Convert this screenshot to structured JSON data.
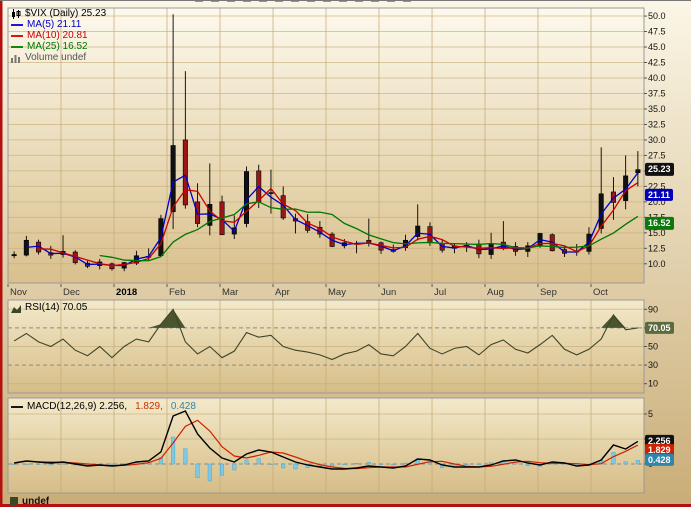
{
  "chart_data": [
    {
      "type": "candlestick",
      "symbol": "$VIX",
      "timeframe": "Daily",
      "last_price": 25.23,
      "title": "$VIX (Daily) 25.23",
      "legend": [
        {
          "swatch": "candle",
          "color": "#000000",
          "text": "$VIX (Daily) 25.23"
        },
        {
          "swatch": "line",
          "color": "#0000cc",
          "text": "MA(5) 21.11"
        },
        {
          "swatch": "line",
          "color": "#cc0000",
          "text": "MA(10) 20.81"
        },
        {
          "swatch": "line",
          "color": "#007700",
          "text": "MA(25) 16.52"
        },
        {
          "swatch": "bars",
          "color": "#666666",
          "text": "Volume undef"
        }
      ],
      "x_axis": {
        "unit": "weeks",
        "months": [
          {
            "label": "Nov",
            "pos": 0
          },
          {
            "label": "Dec",
            "pos": 4.33
          },
          {
            "label": "2018",
            "pos": 8.67,
            "bold": true
          },
          {
            "label": "Feb",
            "pos": 13
          },
          {
            "label": "Mar",
            "pos": 17.33
          },
          {
            "label": "Apr",
            "pos": 21.67
          },
          {
            "label": "May",
            "pos": 26
          },
          {
            "label": "Jun",
            "pos": 30.33
          },
          {
            "label": "Jul",
            "pos": 34.67
          },
          {
            "label": "Aug",
            "pos": 39
          },
          {
            "label": "Sep",
            "pos": 43.33
          },
          {
            "label": "Oct",
            "pos": 47.67
          }
        ]
      },
      "ylim": [
        6.9,
        51.3
      ],
      "ytick_values": [
        50,
        47.5,
        45,
        42.5,
        40,
        37.5,
        35,
        32.5,
        30,
        27.5,
        25,
        22.5,
        20,
        17.5,
        15,
        12.5,
        10
      ],
      "ytick_labels": [
        "50.0",
        "47.5",
        "45.0",
        "42.5",
        "40.0",
        "37.5",
        "35.0",
        "32.5",
        "30.0",
        "27.5",
        "25.0",
        "22.5",
        "20.0",
        "17.5",
        "15.0",
        "12.5",
        "10.0"
      ],
      "ohlc": [
        [
          11.3,
          12.0,
          10.9,
          11.5
        ],
        [
          11.4,
          14.5,
          11.2,
          13.8
        ],
        [
          13.5,
          13.9,
          11.5,
          11.9
        ],
        [
          11.8,
          12.9,
          10.8,
          11.4
        ],
        [
          11.5,
          14.6,
          11.0,
          12.0
        ],
        [
          11.9,
          12.2,
          9.9,
          10.2
        ],
        [
          10.1,
          10.5,
          9.3,
          9.6
        ],
        [
          9.7,
          10.8,
          9.1,
          10.3
        ],
        [
          10.0,
          10.2,
          8.9,
          9.2
        ],
        [
          9.3,
          10.3,
          8.8,
          10.2
        ],
        [
          10.1,
          12.1,
          9.8,
          11.3
        ],
        [
          11.2,
          12.5,
          10.6,
          11.1
        ],
        [
          11.3,
          17.9,
          11.1,
          17.3
        ],
        [
          18.4,
          50.3,
          15.6,
          29.1
        ],
        [
          30.0,
          41.1,
          18.9,
          19.5
        ],
        [
          20.0,
          23.0,
          15.9,
          16.5
        ],
        [
          16.2,
          26.2,
          14.6,
          19.6
        ],
        [
          20.0,
          21.0,
          14.6,
          14.7
        ],
        [
          14.8,
          17.8,
          14.0,
          15.8
        ],
        [
          16.5,
          25.7,
          15.9,
          24.9
        ],
        [
          25.0,
          26.0,
          19.0,
          20.0
        ],
        [
          21.5,
          25.2,
          18.1,
          21.5
        ],
        [
          21.0,
          22.5,
          17.1,
          17.4
        ],
        [
          17.3,
          18.1,
          14.9,
          16.9
        ],
        [
          16.8,
          18.0,
          15.0,
          15.4
        ],
        [
          15.9,
          16.9,
          14.2,
          14.8
        ],
        [
          14.8,
          15.1,
          12.7,
          12.8
        ],
        [
          12.9,
          14.0,
          12.5,
          13.4
        ],
        [
          13.3,
          13.7,
          11.7,
          13.2
        ],
        [
          13.8,
          17.3,
          12.8,
          13.5
        ],
        [
          13.4,
          13.6,
          11.6,
          12.2
        ],
        [
          12.3,
          13.1,
          11.8,
          12.0
        ],
        [
          12.6,
          14.7,
          12.1,
          13.8
        ],
        [
          14.4,
          19.6,
          13.8,
          16.1
        ],
        [
          16.0,
          16.7,
          12.9,
          13.4
        ],
        [
          13.3,
          13.8,
          11.8,
          12.2
        ],
        [
          12.5,
          13.2,
          11.7,
          12.9
        ],
        [
          13.0,
          13.5,
          11.9,
          13.0
        ],
        [
          13.2,
          13.9,
          10.9,
          11.6
        ],
        [
          11.5,
          15.0,
          10.8,
          13.2
        ],
        [
          13.5,
          16.9,
          12.2,
          12.6
        ],
        [
          12.8,
          13.5,
          11.3,
          12.0
        ],
        [
          12.0,
          13.5,
          11.1,
          12.9
        ],
        [
          13.0,
          15.0,
          12.6,
          14.9
        ],
        [
          14.7,
          14.9,
          12.0,
          12.1
        ],
        [
          12.3,
          13.0,
          11.1,
          11.7
        ],
        [
          11.9,
          13.2,
          11.3,
          12.1
        ],
        [
          12.0,
          15.9,
          11.5,
          14.8
        ],
        [
          15.7,
          28.8,
          14.9,
          21.3
        ],
        [
          21.6,
          24.0,
          17.1,
          19.9
        ],
        [
          20.2,
          27.5,
          18.8,
          24.2
        ],
        [
          24.7,
          28.2,
          22.5,
          25.2
        ]
      ],
      "overlays": [
        {
          "name": "MA(5)",
          "value": 21.11,
          "color": "#0000cc",
          "smooth": 2
        },
        {
          "name": "MA(10)",
          "value": 20.81,
          "color": "#cc0000",
          "smooth": 3
        },
        {
          "name": "MA(25)",
          "value": 16.52,
          "color": "#007700",
          "smooth": 8
        }
      ],
      "volume": "undef",
      "badges": [
        {
          "label": "25.23",
          "value": 25.23,
          "bg": "#111111"
        },
        {
          "label": "21.11",
          "value": 21.11,
          "bg": "#0000bb"
        },
        {
          "label": "16.52",
          "value": 16.52,
          "bg": "#0b7a0b"
        }
      ]
    },
    {
      "type": "line",
      "name": "RSI(14)",
      "legend_text": "RSI(14) 70.05",
      "value": 70.05,
      "ylim": [
        0,
        100
      ],
      "ytick_values": [
        90,
        70,
        50,
        30,
        10
      ],
      "ytick_labels": [
        "90",
        "70",
        "50",
        "30",
        "10"
      ],
      "grid_solid": [
        90,
        50,
        10
      ],
      "dashed_levels": [
        70,
        30
      ],
      "fill_above": 70,
      "color": "#3d4529",
      "fill_color": "#4a5530",
      "values": [
        56,
        64,
        55,
        50,
        58,
        46,
        40,
        50,
        38,
        50,
        58,
        55,
        74,
        90,
        55,
        42,
        50,
        38,
        45,
        65,
        60,
        62,
        50,
        46,
        44,
        41,
        36,
        42,
        45,
        52,
        42,
        40,
        50,
        64,
        48,
        42,
        48,
        50,
        41,
        52,
        57,
        47,
        43,
        52,
        62,
        47,
        41,
        47,
        58,
        84,
        68,
        70
      ],
      "badge": {
        "label": "70.05",
        "value": 70.05,
        "bg": "#5c6b3f"
      }
    },
    {
      "type": "macd",
      "name": "MACD(12,26,9)",
      "legend_parts": [
        {
          "text": "MACD(12,26,9) 2.256,",
          "color": "#000000"
        },
        {
          "text": "1.829,",
          "color": "#cc3300"
        },
        {
          "text": "0.428",
          "color": "#2e86ab"
        }
      ],
      "ylim": [
        -2.9,
        6.6
      ],
      "ytick_values": [
        5,
        2.5,
        0
      ],
      "ytick_labels": [
        "5",
        "2.5",
        "0"
      ],
      "grid_solid": [
        5,
        2.5
      ],
      "dashed_levels": [
        0
      ],
      "macd": [
        0.1,
        0.3,
        0.2,
        0.1,
        0.2,
        0.0,
        -0.2,
        -0.1,
        -0.2,
        -0.1,
        0.2,
        0.3,
        1.2,
        4.8,
        5.3,
        3.0,
        1.6,
        0.6,
        0.2,
        1.0,
        1.4,
        1.2,
        0.7,
        0.2,
        -0.1,
        -0.3,
        -0.5,
        -0.5,
        -0.4,
        -0.2,
        -0.3,
        -0.4,
        -0.2,
        0.5,
        0.4,
        -0.1,
        -0.3,
        -0.3,
        -0.3,
        -0.1,
        0.3,
        0.4,
        0.1,
        -0.1,
        0.2,
        0.1,
        -0.2,
        -0.1,
        0.4,
        1.9,
        1.5,
        2.256
      ],
      "signal_smooth": 3,
      "colors": {
        "macd": "#000000",
        "signal": "#cc2200",
        "hist": "#7ec8e3",
        "hist_stroke": "#4a9cc7"
      },
      "badges": [
        {
          "label": "2.256",
          "value": 2.256,
          "bg": "#111111"
        },
        {
          "label": "1.829",
          "value": 1.829,
          "bg": "#cc2200"
        },
        {
          "label": "0.428",
          "value": 0.428,
          "bg": "#2e86ab"
        }
      ]
    }
  ],
  "bottom_panel": {
    "partial_label": "undef"
  }
}
